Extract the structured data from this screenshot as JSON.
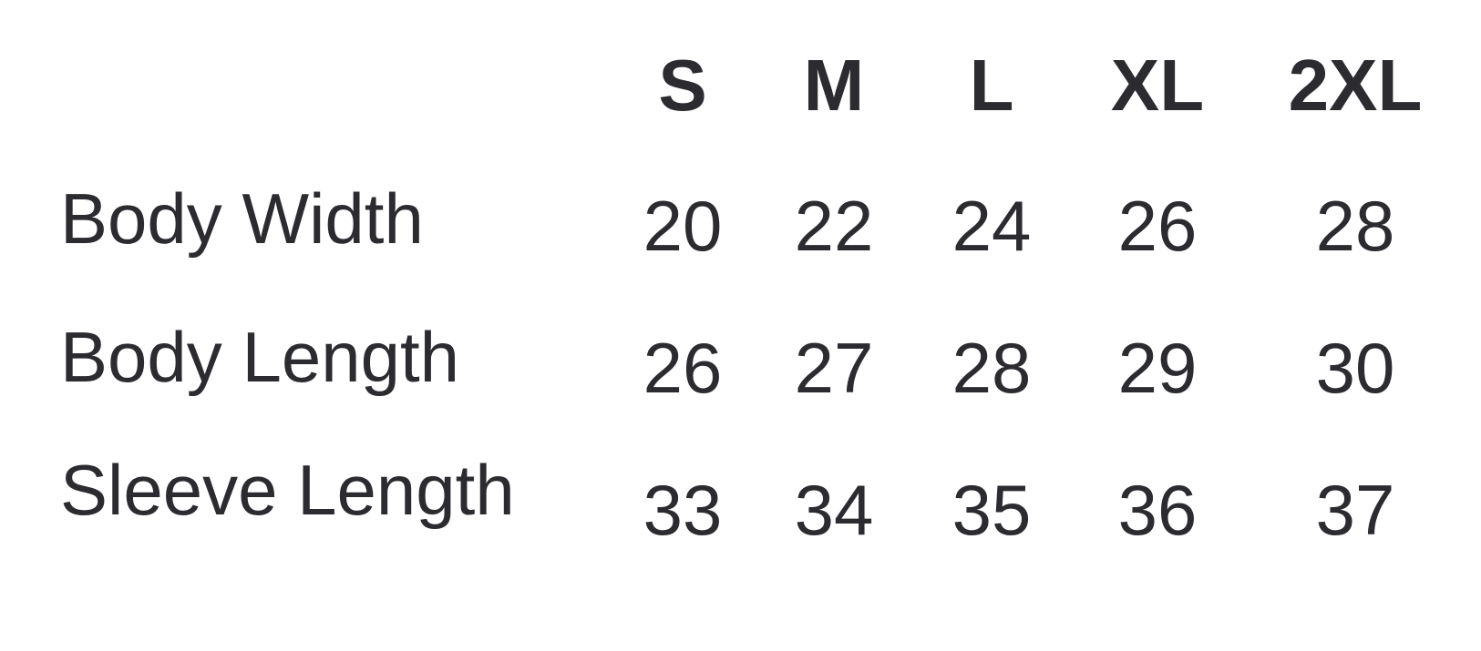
{
  "size_chart": {
    "columns": [
      "S",
      "M",
      "L",
      "XL",
      "2XL"
    ],
    "rows": [
      {
        "label": "Body Width",
        "values": [
          "20",
          "22",
          "24",
          "26",
          "28"
        ]
      },
      {
        "label": "Body Length",
        "values": [
          "26",
          "27",
          "28",
          "29",
          "30"
        ]
      },
      {
        "label": "Sleeve Length",
        "values": [
          "33",
          "34",
          "35",
          "36",
          "37"
        ]
      }
    ]
  },
  "colors": {
    "text": "#2b2b30",
    "background": "#ffffff"
  }
}
